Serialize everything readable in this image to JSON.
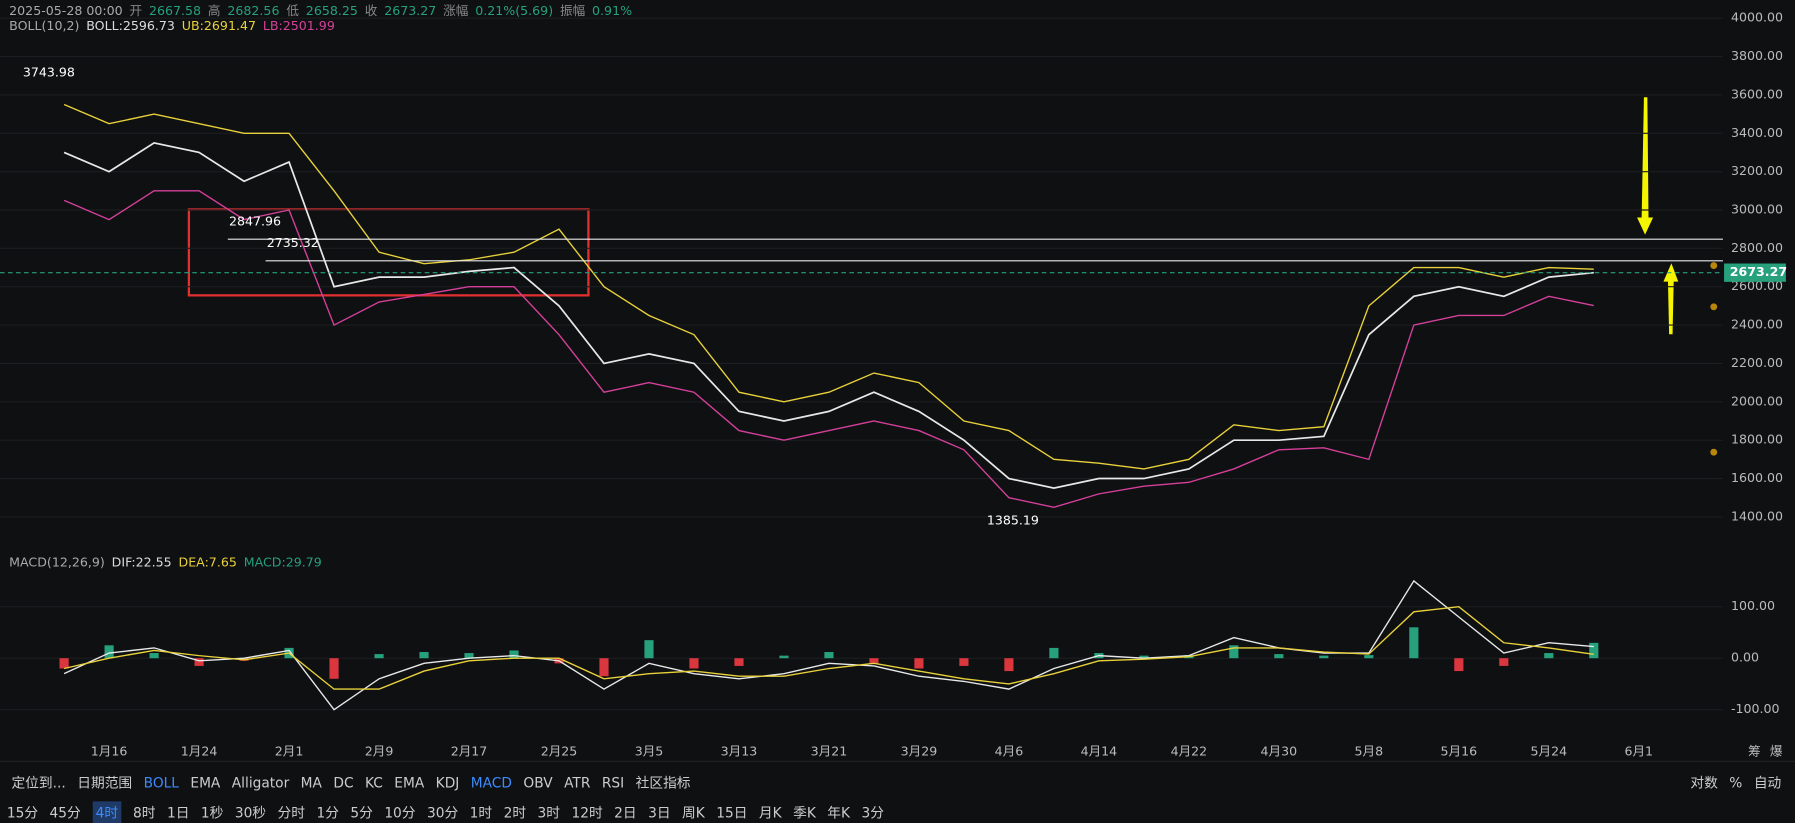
{
  "header": {
    "datetime": "2025-05-28 00:00",
    "items": [
      [
        "开",
        "2667.58"
      ],
      [
        "高",
        "2682.56"
      ],
      [
        "低",
        "2658.25"
      ],
      [
        "收",
        "2673.27"
      ],
      [
        "涨幅",
        "0.21%(5.69)"
      ],
      [
        "振幅",
        "0.91%"
      ]
    ]
  },
  "boll_legend": [
    "BOLL(10,2)",
    "BOLL:2596.73",
    "UB:2691.47",
    "LB:2501.99"
  ],
  "macd_legend": [
    "MACD(12,26,9)",
    "DIF:22.55",
    "DEA:7.65",
    "MACD:29.79"
  ],
  "chart_data": [
    {
      "type": "line",
      "categories": [
        null,
        "1月16",
        null,
        "1月24",
        null,
        "2月1",
        null,
        "2月9",
        null,
        "2月17",
        null,
        "2月25",
        null,
        "3月5",
        null,
        "3月13",
        null,
        "3月21",
        null,
        "3月29",
        null,
        "4月6",
        null,
        "4月14",
        null,
        "4月22",
        null,
        "4月30",
        null,
        "5月8",
        null,
        "5月16",
        null,
        "5月24",
        null,
        "6月1"
      ],
      "series": [
        {
          "name": "收",
          "color": "#e8e8e8",
          "values": [
            3300,
            3200,
            3350,
            3300,
            3150,
            3250,
            2600,
            2650,
            2650,
            2680,
            2700,
            2500,
            2200,
            2250,
            2200,
            1950,
            1900,
            1950,
            2050,
            1950,
            1800,
            1600,
            1550,
            1600,
            1600,
            1650,
            1800,
            1800,
            1820,
            2350,
            2550,
            2600,
            2550,
            2650,
            2673.27,
            null
          ]
        },
        {
          "name": "UB",
          "color": "#e8d13a",
          "values": [
            3550,
            3450,
            3500,
            3450,
            3400,
            3400,
            3100,
            2780,
            2720,
            2740,
            2780,
            2900,
            2600,
            2450,
            2350,
            2050,
            2000,
            2050,
            2150,
            2100,
            1900,
            1850,
            1700,
            1680,
            1650,
            1700,
            1880,
            1850,
            1870,
            2500,
            2700,
            2700,
            2650,
            2700,
            2691.47,
            null
          ]
        },
        {
          "name": "LB",
          "color": "#d4409a",
          "values": [
            3050,
            2950,
            3100,
            3100,
            2950,
            3000,
            2400,
            2520,
            2560,
            2600,
            2600,
            2350,
            2050,
            2100,
            2050,
            1850,
            1800,
            1850,
            1900,
            1850,
            1750,
            1500,
            1450,
            1520,
            1560,
            1580,
            1650,
            1750,
            1760,
            1700,
            2400,
            2450,
            2450,
            2550,
            2501.99,
            null
          ]
        }
      ],
      "ylim": [
        1230,
        4065
      ],
      "yticks": [
        {
          "value": 4000,
          "label": "4000.00"
        },
        {
          "value": 3800,
          "label": "3800.00"
        },
        {
          "value": 3600,
          "label": "3600.00"
        },
        {
          "value": 3400,
          "label": "3400.00"
        },
        {
          "value": 3200,
          "label": "3200.00"
        },
        {
          "value": 3000,
          "label": "3000.00"
        },
        {
          "value": 2800,
          "label": "2800.00"
        },
        {
          "value": 2600,
          "label": "2600.00"
        },
        {
          "value": 2400,
          "label": "2400.00"
        },
        {
          "value": 2200,
          "label": "2200.00"
        },
        {
          "value": 2000,
          "label": "2000.00"
        },
        {
          "value": 1800,
          "label": "1800.00"
        },
        {
          "value": 1600,
          "label": "1600.00"
        },
        {
          "value": 1400,
          "label": "1400.00"
        }
      ],
      "grid": true,
      "levels": [
        2847.96,
        2735.32
      ],
      "high": 3743.98,
      "low": 1385.19
    },
    {
      "type": "bar",
      "values": [
        -20,
        25,
        10,
        -15,
        -5,
        20,
        -40,
        8,
        12,
        10,
        15,
        -10,
        -35,
        35,
        -20,
        -15,
        5,
        12,
        -10,
        -20,
        -15,
        -25,
        20,
        10,
        5,
        6,
        25,
        8,
        5,
        6,
        60,
        -25,
        -15,
        10,
        29.79,
        null
      ],
      "color_up": "#26a17b",
      "color_down": "#d9363e",
      "series": [
        {
          "name": "DIF",
          "color": "#e8e8e8",
          "values": [
            -30,
            10,
            20,
            -5,
            0,
            15,
            -100,
            -40,
            -10,
            0,
            5,
            -5,
            -60,
            -10,
            -30,
            -40,
            -30,
            -10,
            -15,
            -35,
            -45,
            -60,
            -20,
            5,
            0,
            5,
            40,
            20,
            10,
            10,
            150,
            80,
            10,
            30,
            22.55,
            null
          ]
        },
        {
          "name": "DEA",
          "color": "#e8d13a",
          "values": [
            -20,
            0,
            15,
            5,
            -3,
            10,
            -60,
            -60,
            -25,
            -5,
            0,
            0,
            -40,
            -30,
            -25,
            -35,
            -35,
            -20,
            -10,
            -25,
            -40,
            -50,
            -30,
            -5,
            -2,
            3,
            20,
            20,
            12,
            8,
            90,
            100,
            30,
            20,
            7.65,
            null
          ]
        }
      ],
      "ylim": [
        -189,
        171
      ],
      "yticks": [
        {
          "value": 100,
          "label": "100.00"
        },
        {
          "value": 0,
          "label": "0.00"
        },
        {
          "value": -100,
          "label": "-100.00"
        }
      ],
      "grid": true
    }
  ],
  "axis_corner": [
    "筹",
    "爆"
  ],
  "toolbar": {
    "left": [
      "定位到...",
      "日期范围"
    ],
    "indicators": [
      "BOLL",
      "EMA",
      "Alligator",
      "MA",
      "DC",
      "KC"
    ],
    "sub_indicators": [
      "EMA",
      "KDJ",
      "MACD",
      "OBV",
      "ATR",
      "RSI"
    ],
    "community": "社区指标",
    "right": [
      "对数",
      "%",
      "自动"
    ],
    "intervals": [
      "15分",
      "45分",
      "4时",
      "8时",
      "1日",
      "1秒",
      "30秒",
      "分时",
      "1分",
      "5分",
      "10分",
      "30分",
      "1时",
      "2时",
      "3时",
      "12时",
      "2日",
      "3日",
      "周K",
      "15日",
      "月K",
      "季K",
      "年K",
      "3分"
    ]
  }
}
